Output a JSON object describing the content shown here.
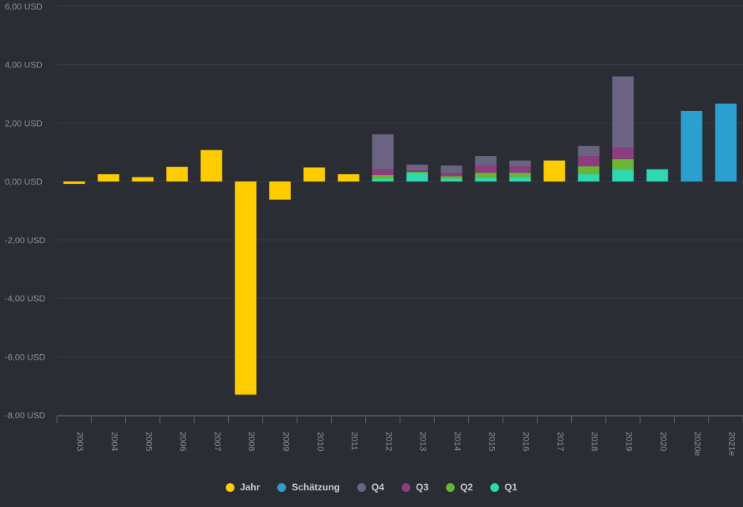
{
  "chart_data": {
    "type": "bar",
    "stacked": true,
    "categories": [
      "2003",
      "2004",
      "2005",
      "2006",
      "2007",
      "2008",
      "2009",
      "2010",
      "2011",
      "2012",
      "2013",
      "2014",
      "2015",
      "2016",
      "2017",
      "2018",
      "2019",
      "2020",
      "2020e",
      "2021e"
    ],
    "y_tick_labels": [
      "6,00 USD",
      "4,00 USD",
      "2,00 USD",
      "0,00 USD",
      "-2,00 USD",
      "-4,00 USD",
      "-6,00 USD",
      "-8,00 USD"
    ],
    "y_ticks": [
      6,
      4,
      2,
      0,
      -2,
      -4,
      -6,
      -8
    ],
    "ylim": [
      -8,
      6
    ],
    "grid": true,
    "legend_position": "bottom",
    "series": [
      {
        "name": "Jahr",
        "color": "#ffcc00",
        "values": [
          -0.08,
          0.25,
          0.15,
          0.5,
          1.08,
          -7.3,
          -0.62,
          0.48,
          0.25,
          null,
          null,
          null,
          null,
          null,
          0.72,
          null,
          null,
          null,
          null,
          null
        ]
      },
      {
        "name": "Schätzung",
        "color": "#2b9fcf",
        "values": [
          null,
          null,
          null,
          null,
          null,
          null,
          null,
          null,
          null,
          null,
          null,
          null,
          null,
          null,
          null,
          null,
          null,
          null,
          2.42,
          2.67
        ]
      },
      {
        "name": "Q1",
        "color": "#2ed8b0",
        "values": [
          null,
          null,
          null,
          null,
          null,
          null,
          null,
          null,
          null,
          0.1,
          0.3,
          0.1,
          0.13,
          0.15,
          null,
          0.25,
          0.42,
          0.42,
          null,
          null
        ]
      },
      {
        "name": "Q2",
        "color": "#6bb536",
        "values": [
          null,
          null,
          null,
          null,
          null,
          null,
          null,
          null,
          null,
          0.12,
          0.03,
          0.08,
          0.17,
          0.15,
          null,
          0.27,
          0.35,
          null,
          null,
          null
        ]
      },
      {
        "name": "Q3",
        "color": "#8c3d7f",
        "values": [
          null,
          null,
          null,
          null,
          null,
          null,
          null,
          null,
          null,
          0.2,
          0.05,
          0.12,
          0.25,
          0.22,
          null,
          0.35,
          0.4,
          null,
          null,
          null
        ]
      },
      {
        "name": "Q4",
        "color": "#6a6482",
        "values": [
          null,
          null,
          null,
          null,
          null,
          null,
          null,
          null,
          null,
          1.2,
          0.2,
          0.25,
          0.32,
          0.2,
          null,
          0.35,
          2.43,
          null,
          null,
          null
        ]
      }
    ],
    "legend_order": [
      "Jahr",
      "Schätzung",
      "Q4",
      "Q3",
      "Q2",
      "Q1"
    ]
  }
}
